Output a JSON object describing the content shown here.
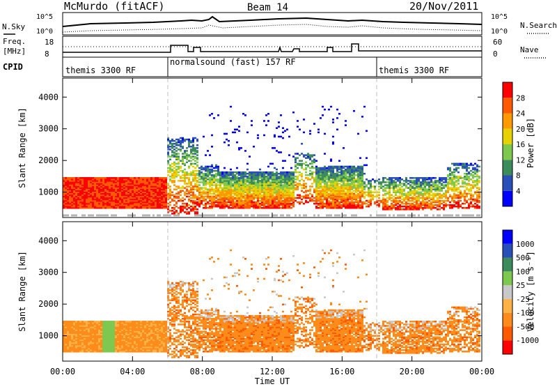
{
  "header": {
    "station": "McMurdo (fitACF)",
    "beam": "Beam 14",
    "date": "20/Nov/2011"
  },
  "top_panels": {
    "nsky_label": "N.Sky",
    "nsearch_label": "N.Search",
    "noise_ticks_left": [
      "10^5",
      "10^0"
    ],
    "noise_ticks_right": [
      "10^5",
      "10^0"
    ],
    "freq_label_1": "Freq.",
    "freq_label_2": "[MHz]",
    "freq_ticks": [
      "18",
      "8"
    ],
    "nave_ticks": [
      "60",
      "0"
    ],
    "nave_label": "Nave",
    "cpid_label": "CPID",
    "cpid_segments": [
      "themis 3300 RF",
      "normalsound (fast) 157 RF",
      "themis 3300 RF"
    ]
  },
  "colors": {
    "power_scale": [
      "#0000ff",
      "#2a4fb8",
      "#3b8b5b",
      "#7ec850",
      "#e6d200",
      "#ff9a00",
      "#ff5a00",
      "#ff0000"
    ],
    "velocity_scale": [
      "#ff0000",
      "#ff5a00",
      "#ff8c1a",
      "#ffb347",
      "#c8c8c8",
      "#7ec850",
      "#3b8b5b",
      "#2a4fb8",
      "#0000ff"
    ],
    "ground_scatter": "#b4b4b4"
  },
  "chart_data": [
    {
      "type": "heatmap",
      "ylabel": "Slant Range [km]",
      "y_ticks": [
        "4000",
        "3000",
        "2000",
        "1000"
      ],
      "colorbar_label": "Power [dB]",
      "colorbar_ticks": [
        "28",
        "24",
        "20",
        "16",
        "12",
        "8",
        "4"
      ],
      "colorbar_range": [
        0,
        32
      ],
      "ylim": [
        200,
        4600
      ]
    },
    {
      "type": "heatmap",
      "ylabel": "Slant Range [km]",
      "y_ticks": [
        "4000",
        "3000",
        "2000",
        "1000"
      ],
      "colorbar_label": "Velocity [m s⁻¹]",
      "colorbar_ticks": [
        "1000",
        "500",
        "100",
        "25",
        "-25",
        "-100",
        "-500",
        "-1000"
      ],
      "xlabel": "Time UT",
      "x_ticks": [
        "00:00",
        "04:00",
        "08:00",
        "12:00",
        "16:00",
        "20:00",
        "00:00"
      ],
      "ylim": [
        200,
        4600
      ]
    }
  ]
}
